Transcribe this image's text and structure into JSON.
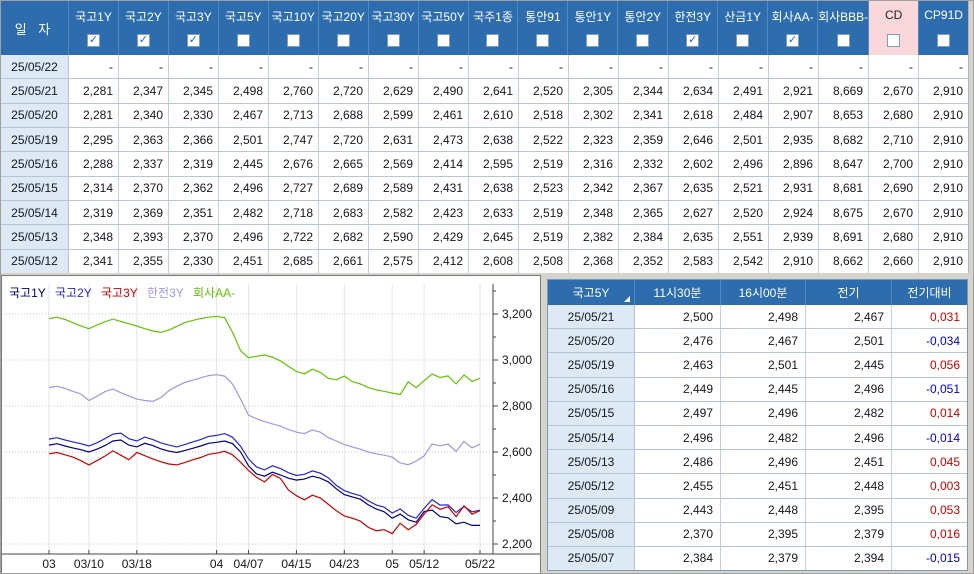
{
  "top_table": {
    "date_header": "일  자",
    "columns": [
      {
        "label": "국고1Y",
        "checked": true,
        "highlight": false
      },
      {
        "label": "국고2Y",
        "checked": true,
        "highlight": false
      },
      {
        "label": "국고3Y",
        "checked": true,
        "highlight": false
      },
      {
        "label": "국고5Y",
        "checked": false,
        "highlight": false
      },
      {
        "label": "국고10Y",
        "checked": false,
        "highlight": false
      },
      {
        "label": "국고20Y",
        "checked": false,
        "highlight": false
      },
      {
        "label": "국고30Y",
        "checked": false,
        "highlight": false
      },
      {
        "label": "국고50Y",
        "checked": false,
        "highlight": false
      },
      {
        "label": "국주1종",
        "checked": false,
        "highlight": false
      },
      {
        "label": "통안91",
        "checked": false,
        "highlight": false
      },
      {
        "label": "통안1Y",
        "checked": false,
        "highlight": false
      },
      {
        "label": "통안2Y",
        "checked": false,
        "highlight": false
      },
      {
        "label": "한전3Y",
        "checked": true,
        "highlight": false
      },
      {
        "label": "산금1Y",
        "checked": false,
        "highlight": false
      },
      {
        "label": "회사AA-",
        "checked": true,
        "highlight": false
      },
      {
        "label": "회사BBB-",
        "checked": false,
        "highlight": false
      },
      {
        "label": "CD",
        "checked": false,
        "highlight": true
      },
      {
        "label": "CP91D",
        "checked": false,
        "highlight": false
      }
    ],
    "rows": [
      {
        "date": "25/05/22",
        "values": [
          "-",
          "-",
          "-",
          "-",
          "-",
          "-",
          "-",
          "-",
          "-",
          "-",
          "-",
          "-",
          "-",
          "-",
          "-",
          "-",
          "-",
          "-"
        ]
      },
      {
        "date": "25/05/21",
        "values": [
          "2,281",
          "2,347",
          "2,345",
          "2,498",
          "2,760",
          "2,720",
          "2,629",
          "2,490",
          "2,641",
          "2,520",
          "2,305",
          "2,344",
          "2,634",
          "2,491",
          "2,921",
          "8,669",
          "2,670",
          "2,910"
        ]
      },
      {
        "date": "25/05/20",
        "values": [
          "2,281",
          "2,340",
          "2,330",
          "2,467",
          "2,713",
          "2,688",
          "2,599",
          "2,461",
          "2,610",
          "2,518",
          "2,302",
          "2,341",
          "2,618",
          "2,484",
          "2,907",
          "8,653",
          "2,680",
          "2,910"
        ]
      },
      {
        "date": "25/05/19",
        "values": [
          "2,295",
          "2,363",
          "2,366",
          "2,501",
          "2,747",
          "2,720",
          "2,631",
          "2,473",
          "2,638",
          "2,522",
          "2,323",
          "2,359",
          "2,646",
          "2,501",
          "2,935",
          "8,682",
          "2,710",
          "2,910"
        ]
      },
      {
        "date": "25/05/16",
        "values": [
          "2,288",
          "2,337",
          "2,319",
          "2,445",
          "2,676",
          "2,665",
          "2,569",
          "2,414",
          "2,595",
          "2,519",
          "2,316",
          "2,332",
          "2,602",
          "2,496",
          "2,896",
          "8,647",
          "2,700",
          "2,910"
        ]
      },
      {
        "date": "25/05/15",
        "values": [
          "2,314",
          "2,370",
          "2,362",
          "2,496",
          "2,727",
          "2,689",
          "2,589",
          "2,431",
          "2,638",
          "2,523",
          "2,342",
          "2,367",
          "2,635",
          "2,521",
          "2,931",
          "8,681",
          "2,690",
          "2,910"
        ]
      },
      {
        "date": "25/05/14",
        "values": [
          "2,319",
          "2,369",
          "2,351",
          "2,482",
          "2,718",
          "2,683",
          "2,582",
          "2,423",
          "2,633",
          "2,519",
          "2,348",
          "2,365",
          "2,627",
          "2,520",
          "2,924",
          "8,675",
          "2,670",
          "2,910"
        ]
      },
      {
        "date": "25/05/13",
        "values": [
          "2,348",
          "2,393",
          "2,370",
          "2,496",
          "2,722",
          "2,682",
          "2,590",
          "2,429",
          "2,645",
          "2,519",
          "2,382",
          "2,384",
          "2,635",
          "2,551",
          "2,939",
          "8,691",
          "2,680",
          "2,910"
        ]
      },
      {
        "date": "25/05/12",
        "values": [
          "2,341",
          "2,355",
          "2,330",
          "2,451",
          "2,685",
          "2,661",
          "2,575",
          "2,412",
          "2,608",
          "2,508",
          "2,368",
          "2,352",
          "2,583",
          "2,542",
          "2,910",
          "8,662",
          "2,660",
          "2,910"
        ]
      }
    ]
  },
  "chart_data": {
    "type": "line",
    "legend_position": "top-left",
    "grid": true,
    "ylim": [
      2.157,
      3.326
    ],
    "y_ticks": [
      {
        "label": "3,200",
        "v": 3.2
      },
      {
        "label": "3,000",
        "v": 3.0
      },
      {
        "label": "2,800",
        "v": 2.8
      },
      {
        "label": "2,600",
        "v": 2.6
      },
      {
        "label": "2,400",
        "v": 2.4
      },
      {
        "label": "2,200",
        "v": 2.2
      }
    ],
    "x_ticks": [
      {
        "label": "03",
        "i": 0
      },
      {
        "label": "03/10",
        "i": 5
      },
      {
        "label": "03/18",
        "i": 11
      },
      {
        "label": "04",
        "i": 21
      },
      {
        "label": "04/07",
        "i": 25
      },
      {
        "label": "04/15",
        "i": 31
      },
      {
        "label": "04/23",
        "i": 37
      },
      {
        "label": "05",
        "i": 43
      },
      {
        "label": "05/12",
        "i": 47
      },
      {
        "label": "05/22",
        "i": 54
      }
    ],
    "x": [
      "03/03",
      "03/04",
      "03/05",
      "03/06",
      "03/07",
      "03/10",
      "03/11",
      "03/12",
      "03/13",
      "03/14",
      "03/17",
      "03/18",
      "03/19",
      "03/20",
      "03/21",
      "03/24",
      "03/25",
      "03/26",
      "03/27",
      "03/28",
      "03/31",
      "04/01",
      "04/02",
      "04/03",
      "04/04",
      "04/07",
      "04/08",
      "04/09",
      "04/10",
      "04/11",
      "04/14",
      "04/15",
      "04/16",
      "04/17",
      "04/18",
      "04/21",
      "04/22",
      "04/23",
      "04/24",
      "04/25",
      "04/28",
      "04/29",
      "04/30",
      "05/02",
      "05/07",
      "05/08",
      "05/09",
      "05/12",
      "05/13",
      "05/14",
      "05/15",
      "05/16",
      "05/19",
      "05/20",
      "05/21"
    ],
    "series": [
      {
        "name": "국고1Y",
        "color": "#000080",
        "values": [
          2.63,
          2.636,
          2.626,
          2.618,
          2.61,
          2.6,
          2.612,
          2.628,
          2.648,
          2.652,
          2.63,
          2.622,
          2.638,
          2.628,
          2.614,
          2.604,
          2.598,
          2.606,
          2.616,
          2.626,
          2.638,
          2.642,
          2.648,
          2.636,
          2.6,
          2.54,
          2.505,
          2.495,
          2.512,
          2.5,
          2.486,
          2.478,
          2.482,
          2.495,
          2.486,
          2.47,
          2.44,
          2.415,
          2.405,
          2.395,
          2.37,
          2.352,
          2.34,
          2.312,
          2.33,
          2.305,
          2.295,
          2.341,
          2.348,
          2.319,
          2.314,
          2.288,
          2.295,
          2.281,
          2.281
        ]
      },
      {
        "name": "국고2Y",
        "color": "#2626d8",
        "values": [
          2.656,
          2.662,
          2.652,
          2.644,
          2.636,
          2.626,
          2.64,
          2.658,
          2.678,
          2.682,
          2.658,
          2.648,
          2.665,
          2.654,
          2.64,
          2.63,
          2.622,
          2.632,
          2.644,
          2.654,
          2.668,
          2.672,
          2.68,
          2.664,
          2.625,
          2.57,
          2.535,
          2.522,
          2.54,
          2.528,
          2.51,
          2.498,
          2.503,
          2.518,
          2.508,
          2.488,
          2.455,
          2.432,
          2.42,
          2.41,
          2.388,
          2.37,
          2.36,
          2.335,
          2.352,
          2.325,
          2.312,
          2.355,
          2.393,
          2.369,
          2.37,
          2.337,
          2.363,
          2.34,
          2.347
        ]
      },
      {
        "name": "국고3Y",
        "color": "#cc0000",
        "values": [
          2.592,
          2.598,
          2.588,
          2.578,
          2.562,
          2.544,
          2.562,
          2.582,
          2.605,
          2.586,
          2.566,
          2.598,
          2.584,
          2.57,
          2.558,
          2.548,
          2.544,
          2.554,
          2.566,
          2.576,
          2.59,
          2.595,
          2.603,
          2.588,
          2.555,
          2.52,
          2.49,
          2.47,
          2.502,
          2.485,
          2.435,
          2.41,
          2.392,
          2.412,
          2.4,
          2.372,
          2.345,
          2.322,
          2.312,
          2.3,
          2.272,
          2.258,
          2.262,
          2.245,
          2.29,
          2.262,
          2.285,
          2.33,
          2.37,
          2.351,
          2.362,
          2.319,
          2.366,
          2.33,
          2.345
        ]
      },
      {
        "name": "한전3Y",
        "color": "#9a9ae6",
        "values": [
          2.88,
          2.886,
          2.876,
          2.864,
          2.852,
          2.824,
          2.842,
          2.862,
          2.874,
          2.858,
          2.844,
          2.83,
          2.824,
          2.82,
          2.836,
          2.866,
          2.886,
          2.902,
          2.912,
          2.922,
          2.932,
          2.936,
          2.93,
          2.895,
          2.83,
          2.76,
          2.745,
          2.732,
          2.722,
          2.712,
          2.698,
          2.686,
          2.68,
          2.696,
          2.686,
          2.662,
          2.648,
          2.632,
          2.622,
          2.612,
          2.6,
          2.592,
          2.586,
          2.578,
          2.552,
          2.545,
          2.56,
          2.583,
          2.635,
          2.627,
          2.635,
          2.602,
          2.646,
          2.618,
          2.634
        ]
      },
      {
        "name": "회사AA-",
        "color": "#61c400",
        "values": [
          3.18,
          3.186,
          3.176,
          3.162,
          3.148,
          3.136,
          3.152,
          3.166,
          3.178,
          3.168,
          3.158,
          3.148,
          3.136,
          3.126,
          3.12,
          3.13,
          3.146,
          3.162,
          3.172,
          3.18,
          3.186,
          3.19,
          3.184,
          3.12,
          3.04,
          3.01,
          3.016,
          3.022,
          3.012,
          2.996,
          2.972,
          2.95,
          2.94,
          2.96,
          2.946,
          2.92,
          2.914,
          2.93,
          2.906,
          2.896,
          2.88,
          2.87,
          2.864,
          2.856,
          2.85,
          2.905,
          2.88,
          2.91,
          2.939,
          2.924,
          2.931,
          2.896,
          2.935,
          2.907,
          2.921
        ]
      }
    ]
  },
  "right_table": {
    "headers": [
      "국고5Y",
      "11시30분",
      "16시00분",
      "전기",
      "전기대비"
    ],
    "rows": [
      {
        "date": "25/05/21",
        "cells": [
          "2,500",
          "2,498",
          "2,467"
        ],
        "change": "0,031"
      },
      {
        "date": "25/05/20",
        "cells": [
          "2,476",
          "2,467",
          "2,501"
        ],
        "change": "-0,034"
      },
      {
        "date": "25/05/19",
        "cells": [
          "2,463",
          "2,501",
          "2,445"
        ],
        "change": "0,056"
      },
      {
        "date": "25/05/16",
        "cells": [
          "2,449",
          "2,445",
          "2,496"
        ],
        "change": "-0,051"
      },
      {
        "date": "25/05/15",
        "cells": [
          "2,497",
          "2,496",
          "2,482"
        ],
        "change": "0,014"
      },
      {
        "date": "25/05/14",
        "cells": [
          "2,496",
          "2,482",
          "2,496"
        ],
        "change": "-0,014"
      },
      {
        "date": "25/05/13",
        "cells": [
          "2,486",
          "2,496",
          "2,451"
        ],
        "change": "0,045"
      },
      {
        "date": "25/05/12",
        "cells": [
          "2,455",
          "2,451",
          "2,448"
        ],
        "change": "0,003"
      },
      {
        "date": "25/05/09",
        "cells": [
          "2,443",
          "2,448",
          "2,395"
        ],
        "change": "0,053"
      },
      {
        "date": "25/05/08",
        "cells": [
          "2,370",
          "2,395",
          "2,379"
        ],
        "change": "0,016"
      },
      {
        "date": "25/05/07",
        "cells": [
          "2,384",
          "2,379",
          "2,394"
        ],
        "change": "-0,015"
      }
    ],
    "colors": {
      "positive": "#cc0000",
      "negative": "#0000cc"
    }
  }
}
